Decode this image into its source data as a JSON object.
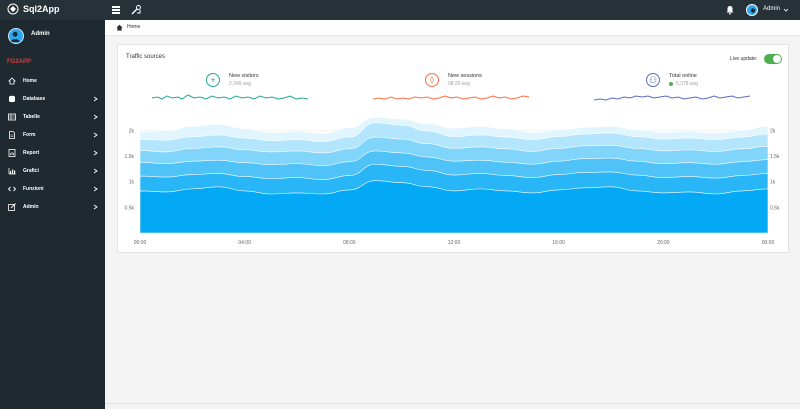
{
  "app": {
    "title": "Sql2App"
  },
  "topbar": {
    "user": "Admin"
  },
  "sidebar": {
    "user": "Admin",
    "section": "FG2APP",
    "items": [
      {
        "label": "Home",
        "icon": "home-icon",
        "chevron": false
      },
      {
        "label": "Database",
        "icon": "database-icon",
        "chevron": true
      },
      {
        "label": "Tabelle",
        "icon": "table-icon",
        "chevron": true
      },
      {
        "label": "Form",
        "icon": "form-icon",
        "chevron": true
      },
      {
        "label": "Report",
        "icon": "report-icon",
        "chevron": true
      },
      {
        "label": "Grafici",
        "icon": "chart-icon",
        "chevron": true
      },
      {
        "label": "Funzioni",
        "icon": "code-icon",
        "chevron": true
      },
      {
        "label": "Admin",
        "icon": "edit-icon",
        "chevron": true
      }
    ]
  },
  "breadcrumb": {
    "label": "Home"
  },
  "card": {
    "title": "Traffic sources",
    "live_update_label": "Live update:",
    "live_update_on": true,
    "stats": [
      {
        "label": "New visitors",
        "avg": "2,349 avg",
        "icon": "plus-icon",
        "color": "#26a69a"
      },
      {
        "label": "New sessions",
        "avg": "08:20 avg",
        "icon": "clock-icon",
        "color": "#ff7043"
      },
      {
        "label": "Total online",
        "avg": "5,378 avg",
        "icon": "people-icon",
        "color": "#5c6bc0"
      }
    ]
  },
  "chart_data": {
    "type": "area",
    "x": [
      "00:00",
      "01:00",
      "02:00",
      "03:00",
      "04:00",
      "05:00",
      "06:00",
      "07:00",
      "08:00",
      "09:00",
      "10:00",
      "11:00",
      "12:00",
      "13:00",
      "14:00",
      "15:00",
      "16:00",
      "17:00",
      "18:00",
      "19:00",
      "20:00",
      "21:00",
      "22:00",
      "23:00",
      "00:00"
    ],
    "x_tick_labels": [
      "00:00",
      "04:00",
      "08:00",
      "12:00",
      "16:00",
      "20:00",
      "00:00"
    ],
    "y_tick_labels": [
      "0.5k",
      "1k",
      "1.5k",
      "2k"
    ],
    "ylim": [
      0,
      2300
    ],
    "stacked_cumulative": true,
    "series": [
      {
        "color": "#03a9f4",
        "values": [
          820,
          800,
          860,
          900,
          820,
          760,
          780,
          760,
          840,
          1020,
          980,
          900,
          820,
          860,
          820,
          780,
          840,
          880,
          900,
          820,
          780,
          800,
          760,
          820,
          860
        ]
      },
      {
        "color": "#29b6f6",
        "values": [
          1110,
          1090,
          1140,
          1160,
          1100,
          1060,
          1080,
          1040,
          1120,
          1340,
          1300,
          1220,
          1130,
          1160,
          1120,
          1080,
          1140,
          1180,
          1190,
          1130,
          1080,
          1100,
          1070,
          1120,
          1160
        ]
      },
      {
        "color": "#4fc3f7",
        "values": [
          1380,
          1350,
          1400,
          1420,
          1370,
          1330,
          1350,
          1310,
          1390,
          1600,
          1560,
          1480,
          1400,
          1420,
          1380,
          1340,
          1400,
          1450,
          1460,
          1400,
          1350,
          1370,
          1340,
          1390,
          1430
        ]
      },
      {
        "color": "#81d4fa",
        "values": [
          1610,
          1580,
          1650,
          1680,
          1620,
          1580,
          1600,
          1560,
          1640,
          1870,
          1830,
          1740,
          1650,
          1680,
          1640,
          1590,
          1650,
          1700,
          1710,
          1650,
          1600,
          1620,
          1590,
          1640,
          1690
        ]
      },
      {
        "color": "#b3e5fc",
        "values": [
          1820,
          1810,
          1880,
          1910,
          1850,
          1800,
          1820,
          1780,
          1870,
          2150,
          2100,
          1990,
          1880,
          1910,
          1870,
          1820,
          1880,
          1930,
          1950,
          1880,
          1830,
          1850,
          1820,
          1870,
          1930
        ]
      },
      {
        "color": "#e1f5fe",
        "values": [
          1980,
          1990,
          2080,
          2120,
          2030,
          1960,
          1980,
          1940,
          2050,
          2260,
          2220,
          2130,
          2040,
          2080,
          2030,
          1960,
          2010,
          2060,
          2080,
          2010,
          1960,
          1980,
          1950,
          2000,
          2080
        ]
      }
    ]
  }
}
